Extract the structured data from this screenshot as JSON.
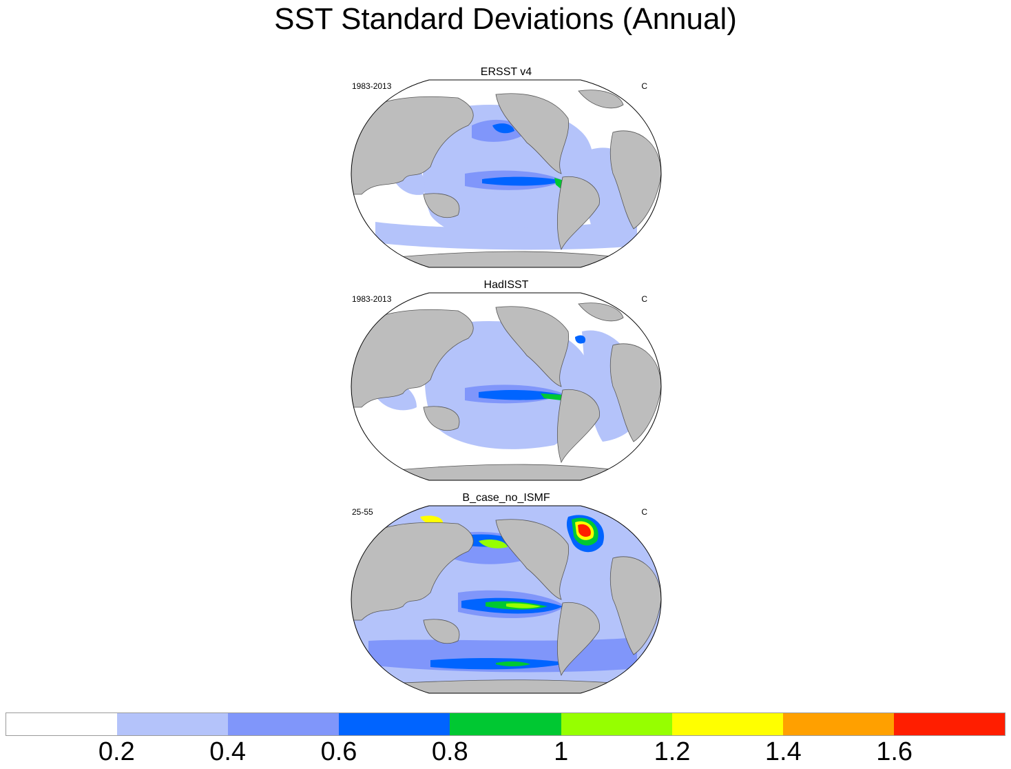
{
  "title": "SST Standard Deviations (Annual)",
  "panels": [
    {
      "title": "ERSST v4",
      "left_label": "1983-2013",
      "right_label": "C"
    },
    {
      "title": "HadISST",
      "left_label": "1983-2013",
      "right_label": "C"
    },
    {
      "title": "B_case_no_ISMF",
      "left_label": "25-55",
      "right_label": "C"
    }
  ],
  "colors": {
    "land": "#bdbdbd",
    "ocean_low": "#ffffff"
  },
  "colorbar": {
    "colors": [
      "#ffffff",
      "#b4c3fa",
      "#8096fa",
      "#0064ff",
      "#00c832",
      "#96ff00",
      "#ffff00",
      "#ffa000",
      "#ff1e00"
    ],
    "labels": [
      "0.2",
      "0.4",
      "0.6",
      "0.8",
      "1",
      "1.2",
      "1.4",
      "1.6"
    ]
  }
}
